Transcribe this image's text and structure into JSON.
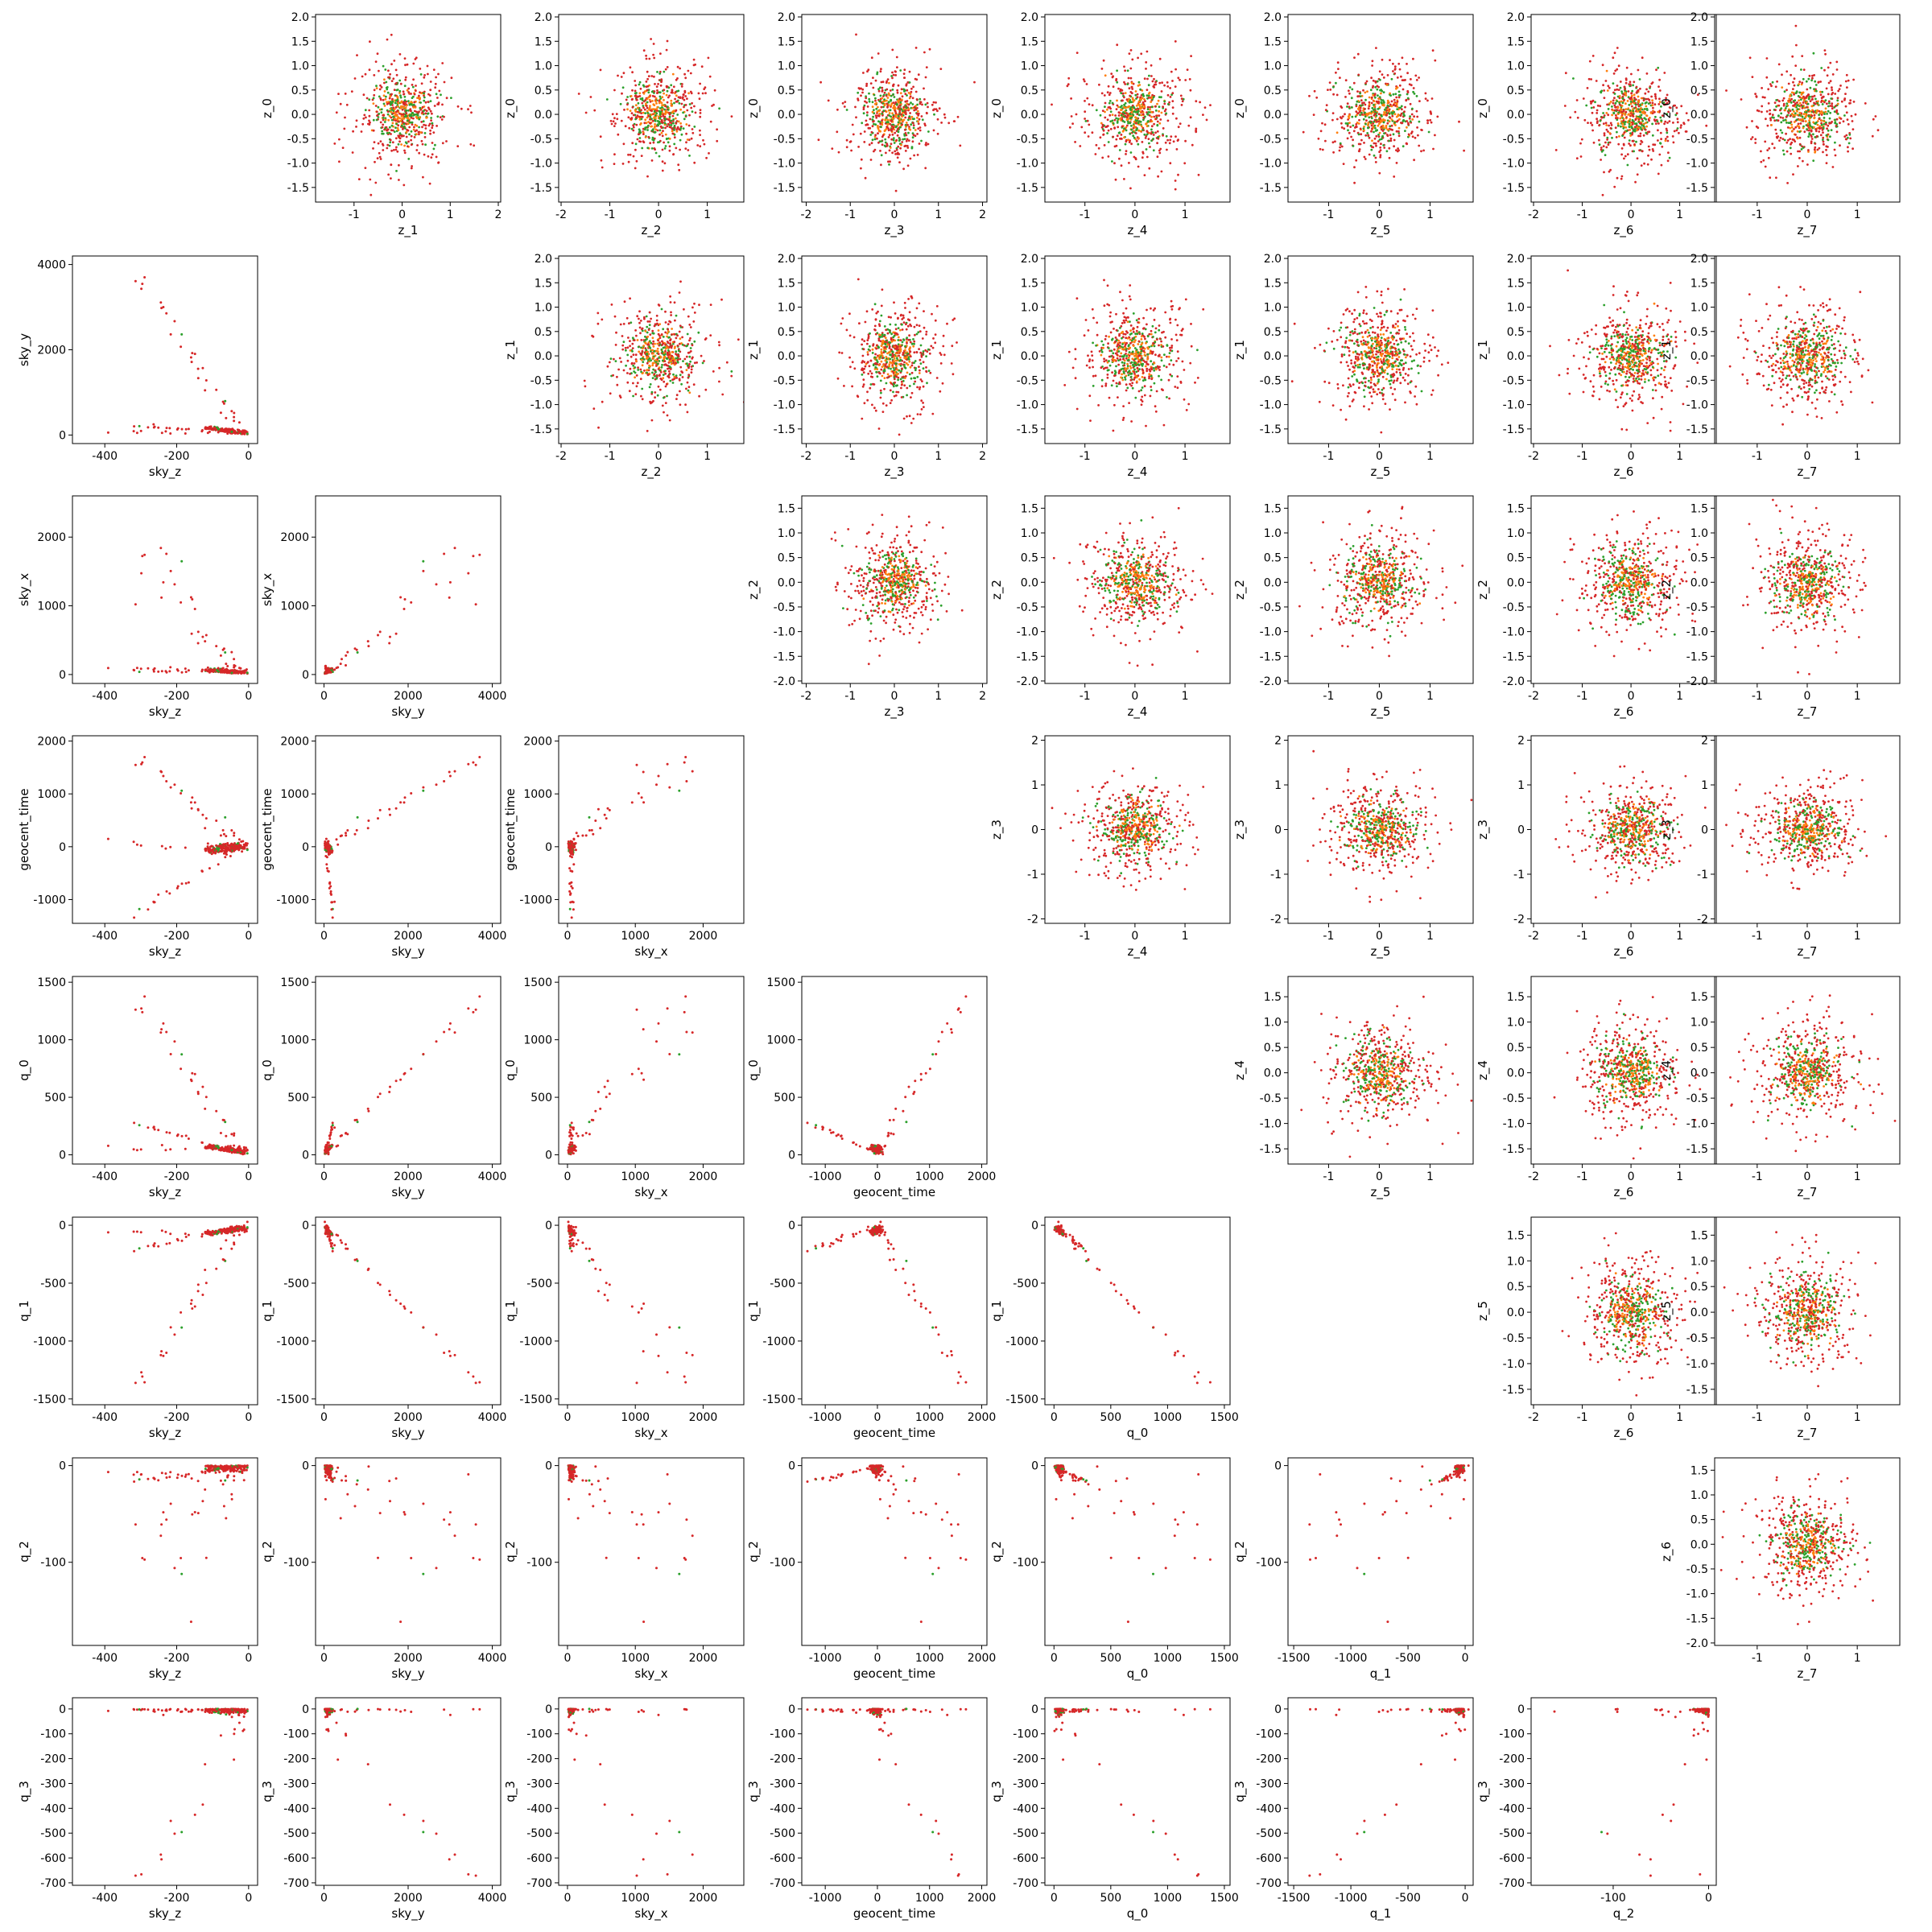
{
  "chart_data": {
    "type": "scatter",
    "layout": "corner-grid",
    "series": [
      {
        "color": "#2ca02c"
      },
      {
        "color": "#ff7f0e"
      },
      {
        "color": "#d62728"
      }
    ],
    "variables": {
      "sky_z": {
        "ticks": [
          -400,
          -200,
          0
        ],
        "range": [
          -490,
          25
        ]
      },
      "sky_y": {
        "ticks": [
          0,
          2000,
          4000
        ],
        "range": [
          -200,
          4200
        ]
      },
      "sky_x": {
        "ticks": [
          0,
          1000,
          2000
        ],
        "range": [
          -130,
          2600
        ]
      },
      "geocent_time": {
        "ticks": [
          -1000,
          0,
          1000,
          2000
        ],
        "range": [
          -1450,
          2100
        ]
      },
      "q_0": {
        "ticks": [
          0,
          500,
          1000,
          1500
        ],
        "range": [
          -80,
          1550
        ]
      },
      "q_1": {
        "ticks": [
          -1500,
          -1000,
          -500,
          0
        ],
        "range": [
          -1550,
          70
        ]
      },
      "q_2": {
        "ticks": [
          -100,
          0
        ],
        "range": [
          -186,
          8
        ]
      },
      "q_3": {
        "ticks": [
          -700,
          -600,
          -500,
          -400,
          -300,
          -200,
          -100,
          0
        ],
        "range": [
          -710,
          45
        ]
      },
      "z_0": {
        "ticks": [
          -1.5,
          -1.0,
          -0.5,
          0.0,
          0.5,
          1.0,
          1.5,
          2.0
        ],
        "range": [
          -1.8,
          2.05
        ]
      },
      "z_1": {
        "ticks": [
          -1.5,
          -1.0,
          -0.5,
          0.0,
          0.5,
          1.0,
          1.5,
          2.0
        ],
        "range": [
          -1.8,
          2.05
        ]
      },
      "z_2": {
        "ticks": [
          -2.0,
          -1.5,
          -1.0,
          -0.5,
          0.0,
          0.5,
          1.0,
          1.5
        ],
        "range": [
          -2.05,
          1.75
        ]
      },
      "z_3": {
        "ticks": [
          -2,
          -1,
          0,
          1,
          2
        ],
        "range": [
          -2.1,
          2.1
        ]
      },
      "z_4": {
        "ticks": [
          -1.5,
          -1.0,
          -0.5,
          0.0,
          0.5,
          1.0,
          1.5
        ],
        "range": [
          -1.8,
          1.9
        ]
      },
      "z_5": {
        "ticks": [
          -1.5,
          -1.0,
          -0.5,
          0.0,
          0.5,
          1.0,
          1.5
        ],
        "range": [
          -1.8,
          1.85
        ]
      },
      "z_6": {
        "ticks": [
          -2.0,
          -1.5,
          -1.0,
          -0.5,
          0.0,
          0.5,
          1.0,
          1.5
        ],
        "range": [
          -2.05,
          1.75
        ]
      },
      "z_7": {
        "ticks": [
          -1,
          0,
          1
        ],
        "range": [
          -1.85,
          1.85
        ]
      }
    },
    "x_tick_override": {
      "z_2": [
        -2,
        -1,
        0,
        1
      ],
      "z_4": [
        -1,
        0,
        1
      ],
      "z_5": [
        -1,
        0,
        1
      ],
      "z_6": [
        -2,
        -1,
        0,
        1
      ],
      "z_1": [
        -1,
        0,
        1,
        2
      ]
    },
    "lower_panels": [
      {
        "y": "sky_y",
        "xs": [
          "sky_z"
        ]
      },
      {
        "y": "sky_x",
        "xs": [
          "sky_z",
          "sky_y"
        ]
      },
      {
        "y": "geocent_time",
        "xs": [
          "sky_z",
          "sky_y",
          "sky_x"
        ]
      },
      {
        "y": "q_0",
        "xs": [
          "sky_z",
          "sky_y",
          "sky_x",
          "geocent_time"
        ]
      },
      {
        "y": "q_1",
        "xs": [
          "sky_z",
          "sky_y",
          "sky_x",
          "geocent_time",
          "q_0"
        ]
      },
      {
        "y": "q_2",
        "xs": [
          "sky_z",
          "sky_y",
          "sky_x",
          "geocent_time",
          "q_0",
          "q_1"
        ]
      },
      {
        "y": "q_3",
        "xs": [
          "sky_z",
          "sky_y",
          "sky_x",
          "geocent_time",
          "q_0",
          "q_1",
          "q_2"
        ]
      }
    ],
    "upper_panels": [
      {
        "y": "z_0",
        "xs": [
          "z_1",
          "z_2",
          "z_3",
          "z_4",
          "z_5",
          "z_6",
          "z_7"
        ]
      },
      {
        "y": "z_1",
        "xs": [
          "z_2",
          "z_3",
          "z_4",
          "z_5",
          "z_6",
          "z_7"
        ]
      },
      {
        "y": "z_2",
        "xs": [
          "z_3",
          "z_4",
          "z_5",
          "z_6",
          "z_7"
        ]
      },
      {
        "y": "z_3",
        "xs": [
          "z_4",
          "z_5",
          "z_6",
          "z_7"
        ]
      },
      {
        "y": "z_4",
        "xs": [
          "z_5",
          "z_6",
          "z_7"
        ]
      },
      {
        "y": "z_5",
        "xs": [
          "z_6",
          "z_7"
        ]
      },
      {
        "y": "z_6",
        "xs": [
          "z_7"
        ]
      }
    ],
    "latent_scatter": {
      "distribution": "gaussian",
      "mean": 0.0,
      "std": 0.55
    },
    "physical_structure": {
      "description": "sky_y≈-13·sky_z branch, sky_x≈0.6·sky_y, geocent_time≈0.45·sky_y with a negative branch, q_0≈0.37·sky_y, q_1≈-0.37·sky_y, q_2 mostly near 0 tail to -180, q_3 mostly near 0 tail to -650"
    },
    "grid": false,
    "legend": "none"
  }
}
